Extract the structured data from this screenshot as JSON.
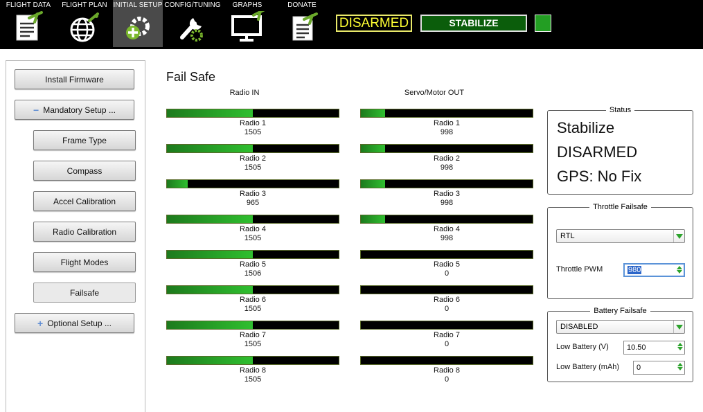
{
  "nav": [
    {
      "label": "FLIGHT DATA",
      "icon": "flight-data-icon"
    },
    {
      "label": "FLIGHT PLAN",
      "icon": "flight-plan-icon"
    },
    {
      "label": "INITIAL SETUP",
      "icon": "initial-setup-icon",
      "active": true
    },
    {
      "label": "CONFIG/TUNING",
      "icon": "config-tuning-icon"
    },
    {
      "label": "GRAPHS",
      "icon": "graphs-icon"
    },
    {
      "label": "DONATE",
      "icon": "donate-icon"
    }
  ],
  "armed_status": "DISARMED",
  "flight_mode": "STABILIZE",
  "colors": {
    "accent": "#2fbf2f",
    "badge_yellow": "#ffff33",
    "mode_green": "#0b5d0b"
  },
  "sidebar": {
    "install_firmware": "Install Firmware",
    "mandatory_setup": "Mandatory Setup ...",
    "mandatory_symbol": "−",
    "items": [
      "Frame Type",
      "Compass",
      "Accel Calibration",
      "Radio Calibration",
      "Flight Modes",
      "Failsafe"
    ],
    "optional_setup": "Optional Setup ...",
    "optional_symbol": "+"
  },
  "page_title": "Fail Safe",
  "radio_in_header": "Radio IN",
  "servo_out_header": "Servo/Motor OUT",
  "radio_in": [
    {
      "label": "Radio 1",
      "value": "1505",
      "level": 0.5
    },
    {
      "label": "Radio 2",
      "value": "1505",
      "level": 0.5
    },
    {
      "label": "Radio 3",
      "value": "965",
      "level": 0.12
    },
    {
      "label": "Radio 4",
      "value": "1505",
      "level": 0.5
    },
    {
      "label": "Radio 5",
      "value": "1506",
      "level": 0.5
    },
    {
      "label": "Radio 6",
      "value": "1505",
      "level": 0.5
    },
    {
      "label": "Radio 7",
      "value": "1505",
      "level": 0.5
    },
    {
      "label": "Radio 8",
      "value": "1505",
      "level": 0.5
    }
  ],
  "servo_out": [
    {
      "label": "Radio 1",
      "value": "998",
      "level": 0.14
    },
    {
      "label": "Radio 2",
      "value": "998",
      "level": 0.14
    },
    {
      "label": "Radio 3",
      "value": "998",
      "level": 0.14
    },
    {
      "label": "Radio 4",
      "value": "998",
      "level": 0.14
    },
    {
      "label": "Radio 5",
      "value": "0",
      "level": 0
    },
    {
      "label": "Radio 6",
      "value": "0",
      "level": 0
    },
    {
      "label": "Radio 7",
      "value": "0",
      "level": 0
    },
    {
      "label": "Radio 8",
      "value": "0",
      "level": 0
    }
  ],
  "status": {
    "title": "Status",
    "mode": "Stabilize",
    "armed": "DISARMED",
    "gps": "GPS: No Fix"
  },
  "throttle_failsafe": {
    "title": "Throttle Failsafe",
    "action": "RTL",
    "pwm_label": "Throttle PWM",
    "pwm_value": "980"
  },
  "battery_failsafe": {
    "title": "Battery Failsafe",
    "action": "DISABLED",
    "low_v_label": "Low Battery (V)",
    "low_v_value": "10.50",
    "low_mah_label": "Low Battery (mAh)",
    "low_mah_value": "0"
  }
}
